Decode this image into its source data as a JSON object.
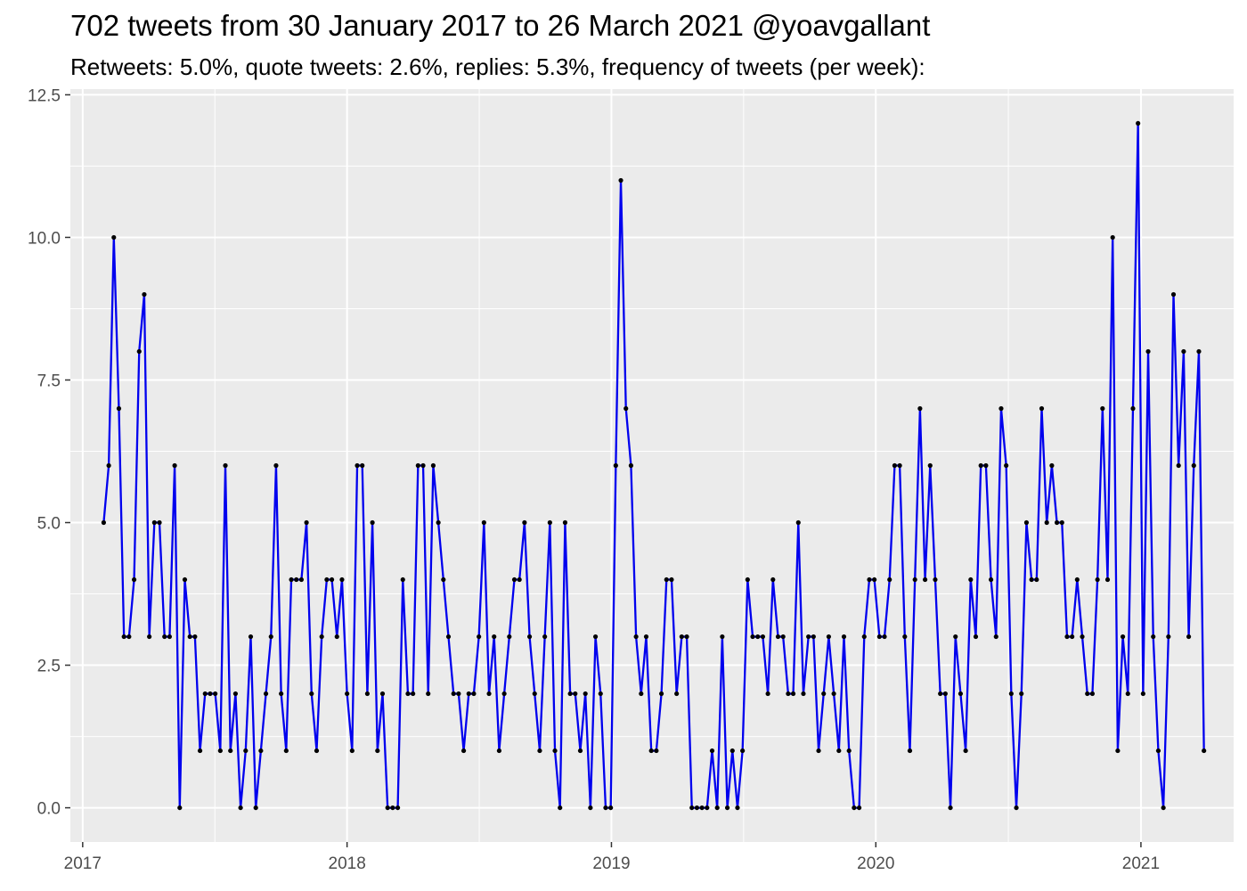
{
  "chart_data": {
    "type": "line",
    "title": "702 tweets from 30 January 2017 to 26 March 2021 @yoavgallant",
    "subtitle": "Retweets: 5.0%, quote tweets: 2.6%, replies: 5.3%, frequency of tweets (per week):",
    "xlabel": "",
    "ylabel": "",
    "x_range": [
      "2016-12-15",
      "2021-05-09"
    ],
    "ylim": [
      -0.6,
      12.6
    ],
    "y_ticks": [
      0.0,
      2.5,
      5.0,
      7.5,
      10.0,
      12.5
    ],
    "y_tick_labels": [
      "0.0",
      "2.5",
      "5.0",
      "7.5",
      "10.0",
      "12.5"
    ],
    "x_ticks": [
      "2017-01-01",
      "2018-01-01",
      "2019-01-01",
      "2020-01-01",
      "2021-01-01"
    ],
    "x_tick_labels": [
      "2017",
      "2018",
      "2019",
      "2020",
      "2021"
    ],
    "grid": true,
    "legend": "none",
    "colors": {
      "line": "#0000ee",
      "point": "#000000",
      "panel": "#ebebeb",
      "grid": "#ffffff"
    },
    "series": [
      {
        "start_date": "2017-01-30",
        "interval_days": 7,
        "values": [
          5,
          6,
          10,
          7,
          3,
          3,
          4,
          8,
          9,
          3,
          5,
          5,
          3,
          3,
          6,
          0,
          4,
          3,
          3,
          1,
          2,
          2,
          2,
          1,
          6,
          1,
          2,
          0,
          1,
          3,
          0,
          1,
          2,
          3,
          6,
          2,
          1,
          4,
          4,
          4,
          5,
          2,
          1,
          3,
          4,
          4,
          3,
          4,
          2,
          1,
          6,
          6,
          2,
          5,
          1,
          2,
          0,
          0,
          0,
          4,
          2,
          2,
          6,
          6,
          2,
          6,
          5,
          4,
          3,
          2,
          2,
          1,
          2,
          2,
          3,
          5,
          2,
          3,
          1,
          2,
          3,
          4,
          4,
          5,
          3,
          2,
          1,
          3,
          5,
          1,
          0,
          5,
          2,
          2,
          1,
          2,
          0,
          3,
          2,
          0,
          0,
          6,
          11,
          7,
          6,
          3,
          2,
          3,
          1,
          1,
          2,
          4,
          4,
          2,
          3,
          3,
          0,
          0,
          0,
          0,
          1,
          0,
          3,
          0,
          1,
          0,
          1,
          4,
          3,
          3,
          3,
          2,
          4,
          3,
          3,
          2,
          2,
          5,
          2,
          3,
          3,
          1,
          2,
          3,
          2,
          1,
          3,
          1,
          0,
          0,
          3,
          4,
          4,
          3,
          3,
          4,
          6,
          6,
          3,
          1,
          4,
          7,
          4,
          6,
          4,
          2,
          2,
          0,
          3,
          2,
          1,
          4,
          3,
          6,
          6,
          4,
          3,
          7,
          6,
          2,
          0,
          2,
          5,
          4,
          4,
          7,
          5,
          6,
          5,
          5,
          3,
          3,
          4,
          3,
          2,
          2,
          4,
          7,
          4,
          10,
          1,
          3,
          2,
          7,
          12,
          2,
          8,
          3,
          1,
          0,
          3,
          9,
          6,
          8,
          3,
          6,
          8,
          1
        ]
      }
    ]
  }
}
